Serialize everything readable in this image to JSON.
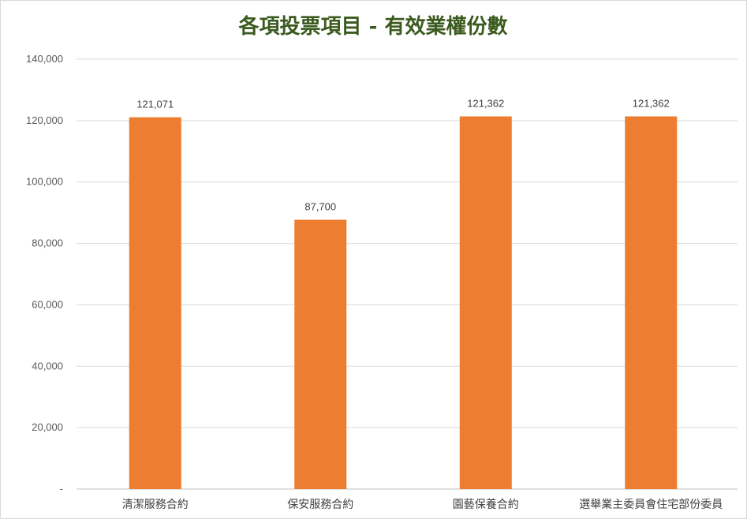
{
  "chart_data": {
    "type": "bar",
    "title": "各項投票項目 - 有效業權份數",
    "xlabel": "",
    "ylabel": "",
    "categories": [
      "清潔服務合約",
      "保安服務合約",
      "園藝保養合約",
      "選舉業主委員會住宅部份委員"
    ],
    "values": [
      121071,
      87700,
      121362,
      121362
    ],
    "data_labels": [
      "121,071",
      "87,700",
      "121,362",
      "121,362"
    ],
    "ylim": [
      0,
      140000
    ],
    "yticks": [
      0,
      20000,
      40000,
      60000,
      80000,
      100000,
      120000,
      140000
    ],
    "ytick_labels": [
      "-",
      "20,000",
      "40,000",
      "60,000",
      "80,000",
      "100,000",
      "120,000",
      "140,000"
    ],
    "bar_color": "#ed7d31",
    "grid": true,
    "legend": "none"
  }
}
